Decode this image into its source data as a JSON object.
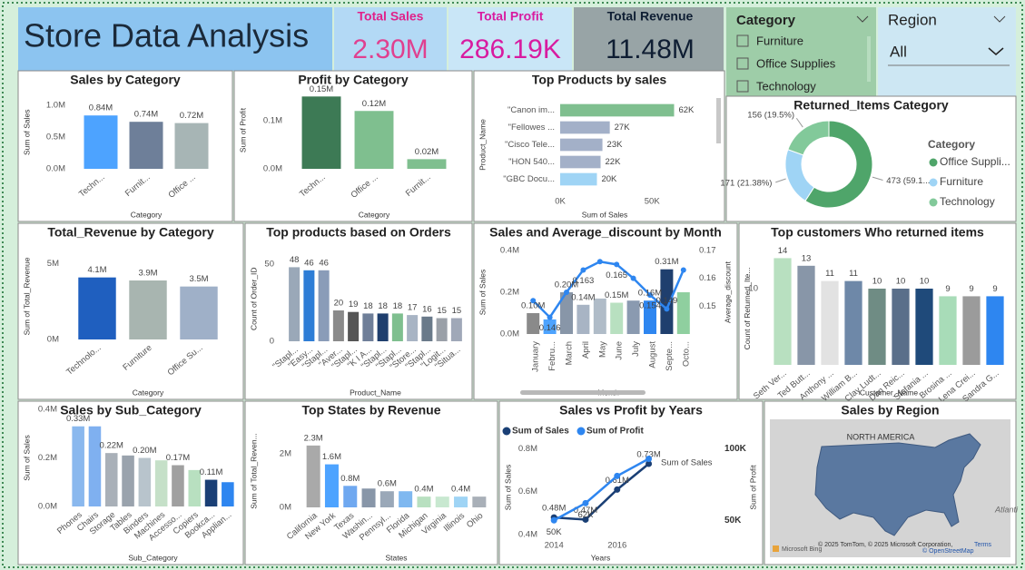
{
  "header": {
    "title": "Store Data Analysis"
  },
  "kpis": [
    {
      "label": "Total Sales",
      "value": "2.30M"
    },
    {
      "label": "Total Profit",
      "value": "286.19K"
    },
    {
      "label": "Total Revenue",
      "value": "11.48M"
    }
  ],
  "slicers": {
    "category": {
      "title": "Category",
      "items": [
        "Furniture",
        "Office Supplies",
        "Technology"
      ]
    },
    "region": {
      "title": "Region",
      "selected": "All"
    }
  },
  "chart_data": [
    {
      "type": "bar",
      "title": "Sales by Category",
      "categories": [
        "Techn...",
        "Furnit...",
        "Office ..."
      ],
      "values": [
        840000,
        740000,
        720000
      ],
      "value_labels": [
        "0.84M",
        "0.74M",
        "0.72M"
      ],
      "colors": [
        "#4da3ff",
        "#6e7f99",
        "#a7b5b5"
      ],
      "ylim": [
        0,
        1150000
      ],
      "yticks": [
        {
          "value": 0,
          "label": "0.0M"
        },
        {
          "value": 500000,
          "label": "0.5M"
        },
        {
          "value": 1000000,
          "label": "1.0M"
        }
      ],
      "y_label": "Sum of Sales",
      "x_label": "Category"
    },
    {
      "type": "bar",
      "title": "Profit by Category",
      "categories": [
        "Techn...",
        "Office ...",
        "Furnit..."
      ],
      "values": [
        150000,
        120000,
        20000
      ],
      "value_labels": [
        "0.15M",
        "0.12M",
        "0.02M"
      ],
      "colors": [
        "#3d7a55",
        "#7fbf8f",
        "#7fbf8f"
      ],
      "ylim": [
        0,
        160000
      ],
      "yticks": [
        {
          "value": 0,
          "label": "0.0M"
        },
        {
          "value": 100000,
          "label": "0.1M"
        }
      ],
      "y_label": "Sum of Profit",
      "x_label": "Category"
    },
    {
      "type": "barh",
      "title": "Top Products by sales",
      "categories": [
        "\"Canon im...",
        "\"Fellowes ...",
        "\"Cisco Tele...",
        "\"HON 540...",
        "\"GBC Docu..."
      ],
      "values": [
        62000,
        27000,
        23000,
        22000,
        20000
      ],
      "value_labels": [
        "62K",
        "27K",
        "23K",
        "22K",
        "20K"
      ],
      "colors": [
        "#7fbf8f",
        "#a3b0c8",
        "#a3b0c8",
        "#a3b0c8",
        "#9fd4f5"
      ],
      "xlim": [
        0,
        83000
      ],
      "xticks": [
        {
          "value": 0,
          "label": "0K"
        },
        {
          "value": 50000,
          "label": "50K"
        }
      ],
      "y_label": "Product_Name",
      "x_label": "Sum of Sales"
    },
    {
      "type": "donut",
      "title": "Returned_Items Category",
      "categories": [
        "Office Suppli...",
        "Furniture",
        "Technology"
      ],
      "values": [
        473,
        171,
        156
      ],
      "value_labels": [
        "473 (59.1...",
        "171 (21.38%)",
        "156 (19.5%)"
      ],
      "colors": [
        "#4fa56a",
        "#9fd4f5",
        "#82c99a"
      ],
      "legend_title": "Category"
    },
    {
      "type": "bar",
      "title": "Total_Revenue by Category",
      "categories": [
        "Technolo...",
        "Furniture",
        "Office Su..."
      ],
      "values": [
        4100000,
        3900000,
        3500000
      ],
      "value_labels": [
        "4.1M",
        "3.9M",
        "3.5M"
      ],
      "colors": [
        "#1f5fbf",
        "#a8b5b0",
        "#9fb0c8"
      ],
      "ylim": [
        0,
        5700000
      ],
      "yticks": [
        {
          "value": 0,
          "label": "0M"
        },
        {
          "value": 5000000,
          "label": "5M"
        }
      ],
      "y_label": "Sum of Total_Revenue",
      "x_label": "Category"
    },
    {
      "type": "bar",
      "title": "Top products based on Orders",
      "categories": [
        "\"Stapl...",
        "\"Easy...",
        "\"Stapl...",
        "\"Aver...",
        "\"Stapl...",
        "\"K I A...",
        "\"Stapl...",
        "\"Stapl...",
        "\"Store...",
        "\"Stapl...",
        "\"Logit...",
        "\"Situa..."
      ],
      "values": [
        48,
        46,
        46,
        20,
        19,
        18,
        18,
        18,
        17,
        16,
        15,
        15
      ],
      "colors": [
        "#9aa8b8",
        "#2e7dd6",
        "#8a9cb8",
        "#8a8a8a",
        "#555555",
        "#6f7f99",
        "#1f3f6e",
        "#7fbf8f",
        "#a8b4c4",
        "#6a7a8a",
        "#9aa0a8",
        "#a0a8b8"
      ],
      "ylim": [
        0,
        55
      ],
      "yticks": [
        0,
        50
      ],
      "y_label": "Count of Order_ID",
      "x_label": "Product_Name"
    },
    {
      "type": "combo",
      "title": "Sales and Average_discount by Month",
      "categories": [
        "January",
        "Febru...",
        "March",
        "April",
        "May",
        "June",
        "July",
        "August",
        "Septe...",
        "Octo..."
      ],
      "series": [
        {
          "colors": [
            "#8a8a8a",
            "#4da3ff",
            "#8896a8",
            "#a8b4c4",
            "#b0bcc8",
            "#b8e0c0",
            "#8a9ab0",
            "#2e86f0",
            "#1f3f6e",
            "#8fcf9f"
          ],
          "values": [
            100000,
            70000,
            200000,
            140000,
            170000,
            150000,
            160000,
            160000,
            310000,
            200000
          ],
          "value_labels": [
            "0.10M",
            null,
            "0.20M",
            "0.14M",
            null,
            "0.15M",
            null,
            "0.16M",
            "0.31M",
            null
          ]
        },
        {
          "axis": "y2",
          "color": "#2e86f0",
          "values": [
            0.152,
            0.146,
            0.155,
            0.163,
            0.166,
            0.165,
            0.16,
            0.154,
            0.149,
            0.163
          ],
          "value_labels": [
            null,
            "0.146",
            null,
            "0.163",
            null,
            "0.165",
            null,
            "0.154",
            "0.149",
            null
          ]
        }
      ],
      "ylim": [
        0,
        400000
      ],
      "yticks": [
        {
          "value": 0,
          "label": "0.0M"
        },
        {
          "value": 200000,
          "label": "0.2M"
        },
        {
          "value": 400000,
          "label": "0.4M"
        }
      ],
      "y2lim": [
        0.14,
        0.17
      ],
      "y2ticks": [
        0.15,
        0.16,
        0.17
      ],
      "y_label": "Sum of Sales",
      "y2_label": "Average_discount",
      "x_label": "Month"
    },
    {
      "type": "bar",
      "title": "Top customers Who returned items",
      "categories": [
        "Seth Ver...",
        "Ted Butt...",
        "Anthony ...",
        "William B...",
        "Clay Ludt...",
        "Dan Reic...",
        "Stefania ...",
        "Brosina ...",
        "Lena Crei...",
        "Sandra G..."
      ],
      "values": [
        14,
        13,
        11,
        11,
        10,
        10,
        10,
        9,
        9,
        9
      ],
      "colors": [
        "#b8e0c0",
        "#8896a8",
        "#e2e2e2",
        "#6e88a8",
        "#6f8c84",
        "#5a6f8a",
        "#1f4a7a",
        "#a8dcb8",
        "#9b9b9b",
        "#2e86f0"
      ],
      "ylim": [
        0,
        14.8
      ],
      "yticks": [
        10
      ],
      "y_label": "Count of Returned_Ite...",
      "x_label": "Customer_Name"
    },
    {
      "type": "bar",
      "title": "Sales by Sub_Category",
      "categories": [
        "Phones",
        "Chairs",
        "Storage",
        "Tables",
        "Binders",
        "Machines",
        "Accesso...",
        "Copiers",
        "Bookca...",
        "Applian..."
      ],
      "values": [
        330000,
        330000,
        220000,
        210000,
        200000,
        190000,
        170000,
        150000,
        110000,
        100000
      ],
      "value_labels": [
        "0.33M",
        null,
        "0.22M",
        null,
        "0.20M",
        null,
        "0.17M",
        null,
        "0.11M",
        null
      ],
      "colors": [
        "#8ab8ee",
        "#7fb0f0",
        "#a9b0b8",
        "#9aa3ad",
        "#b8c4cc",
        "#c5e0c8",
        "#a0a0a0",
        "#b8e0c0",
        "#1a3f75",
        "#2e86f0"
      ],
      "ylim": [
        0,
        400000
      ],
      "yticks": [
        {
          "value": 0,
          "label": "0.0M"
        },
        {
          "value": 200000,
          "label": "0.2M"
        },
        {
          "value": 400000,
          "label": "0.4M"
        }
      ],
      "y_label": "Sum of Sales",
      "x_label": "Sub_Category"
    },
    {
      "type": "bar",
      "title": "Top States by Revenue",
      "categories": [
        "California",
        "New York",
        "Texas",
        "Washin...",
        "Pennsyl...",
        "Florida",
        "Michigan",
        "Virginia",
        "Illinois",
        "Ohio"
      ],
      "values": [
        2300000,
        1600000,
        800000,
        700000,
        600000,
        600000,
        400000,
        400000,
        400000,
        400000
      ],
      "value_labels": [
        "2.3M",
        "1.6M",
        "0.8M",
        null,
        "0.6M",
        null,
        "0.4M",
        null,
        "0.4M",
        null
      ],
      "colors": [
        "#a9a9a9",
        "#4da3ff",
        "#6fa8f0",
        "#8896a8",
        "#9aa8b8",
        "#7fb8f0",
        "#b8e0c0",
        "#c8e8d0",
        "#9fd4f5",
        "#a9b0b8"
      ],
      "ylim": [
        0,
        2700000
      ],
      "yticks": [
        {
          "value": 0,
          "label": "0M"
        },
        {
          "value": 2000000,
          "label": "2M"
        }
      ],
      "y_label": "Sum of Total_Reven...",
      "x_label": "States"
    },
    {
      "type": "line",
      "title": "Sales vs Profit by Years",
      "x": [
        2014,
        2015,
        2016,
        2017
      ],
      "xlim": [
        2013.65,
        2017.3
      ],
      "xticks": [
        2014,
        2016
      ],
      "series": [
        {
          "name": "Sum of Sales",
          "color": "#1a3f75",
          "values": [
            480000,
            470000,
            610000,
            730000
          ],
          "value_labels": [
            "0.48M",
            "0.47M",
            "0.61M",
            "0.73M"
          ]
        },
        {
          "name": "Sum of Profit",
          "color": "#2e86f0",
          "axis": "y2",
          "values": [
            50000,
            62000,
            81000,
            93000
          ],
          "value_labels": [
            "50K",
            "62K",
            null,
            null
          ]
        }
      ],
      "ylim": [
        400000,
        840000
      ],
      "yticks": [
        {
          "value": 400000,
          "label": "0.4M"
        },
        {
          "value": 600000,
          "label": "0.6M"
        },
        {
          "value": 800000,
          "label": "0.8M"
        }
      ],
      "y2lim": [
        40000,
        106000
      ],
      "y2ticks": [
        {
          "value": 50000,
          "label": "50K"
        },
        {
          "value": 100000,
          "label": "100K"
        }
      ],
      "y_label": "Sum of Sales",
      "y2_label": "Sum of Profit",
      "x_label": "Years",
      "annotations": [
        "Sum of Sales"
      ]
    }
  ],
  "map": {
    "title": "Sales by Region",
    "labels": [
      "NORTH AMERICA",
      "Atlanti"
    ],
    "attribution": "© 2025 TomTom, © 2025 Microsoft Corporation,",
    "osm": "© OpenStreetMap",
    "terms": "Terms",
    "brand": "Microsoft Bing"
  }
}
